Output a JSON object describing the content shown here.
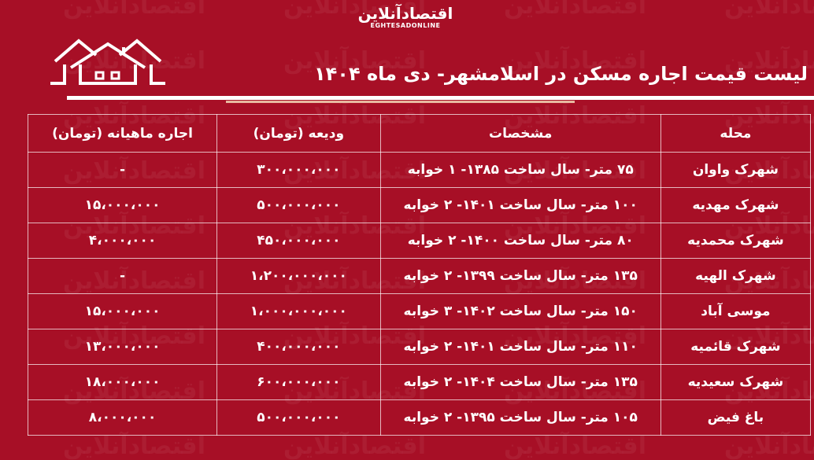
{
  "logo": {
    "fa": "اقتصادآنلاین",
    "en": "EGHTESADONLINE"
  },
  "watermark": "اقتصادآنلاین",
  "title": "لیست قیمت اجاره مسکن در اسلامشهر-  دی ماه ۱۴۰۴",
  "colors": {
    "background": "#a70f26",
    "text": "#ffffff",
    "accent_rule": "#e8b9a0"
  },
  "table": {
    "headers": [
      "محله",
      "مشخصات",
      "ودیعه (تومان)",
      "اجاره ماهیانه (تومان)"
    ],
    "rows": [
      [
        "شهرک واوان",
        "۷۵ متر- سال ساخت ۱۳۸۵- ۱ خوابه",
        "۳۰۰،۰۰۰،۰۰۰",
        "-"
      ],
      [
        "شهرک مهدیه",
        "۱۰۰ متر- سال ساخت ۱۴۰۱- ۲ خوابه",
        "۵۰۰،۰۰۰،۰۰۰",
        "۱۵،۰۰۰،۰۰۰"
      ],
      [
        "شهرک محمدیه",
        "۸۰ متر- سال ساخت ۱۴۰۰- ۲ خوابه",
        "۴۵۰،۰۰۰،۰۰۰",
        "۴،۰۰۰،۰۰۰"
      ],
      [
        "شهرک الهیه",
        "۱۳۵ متر- سال ساخت ۱۳۹۹- ۲ خوابه",
        "۱،۲۰۰،۰۰۰،۰۰۰",
        "-"
      ],
      [
        "موسی آباد",
        "۱۵۰ متر- سال ساخت ۱۴۰۲- ۳ خوابه",
        "۱،۰۰۰،۰۰۰،۰۰۰",
        "۱۵،۰۰۰،۰۰۰"
      ],
      [
        "شهرک قائمیه",
        "۱۱۰ متر- سال ساخت ۱۴۰۱- ۲ خوابه",
        "۴۰۰،۰۰۰،۰۰۰",
        "۱۳،۰۰۰،۰۰۰"
      ],
      [
        "شهرک سعیدیه",
        "۱۳۵ متر- سال ساخت ۱۴۰۴- ۲ خوابه",
        "۶۰۰،۰۰۰،۰۰۰",
        "۱۸،۰۰۰،۰۰۰"
      ],
      [
        "باغ فیض",
        "۱۰۵ متر- سال ساخت ۱۳۹۵- ۲ خوابه",
        "۵۰۰،۰۰۰،۰۰۰",
        "۸،۰۰۰،۰۰۰"
      ]
    ]
  }
}
